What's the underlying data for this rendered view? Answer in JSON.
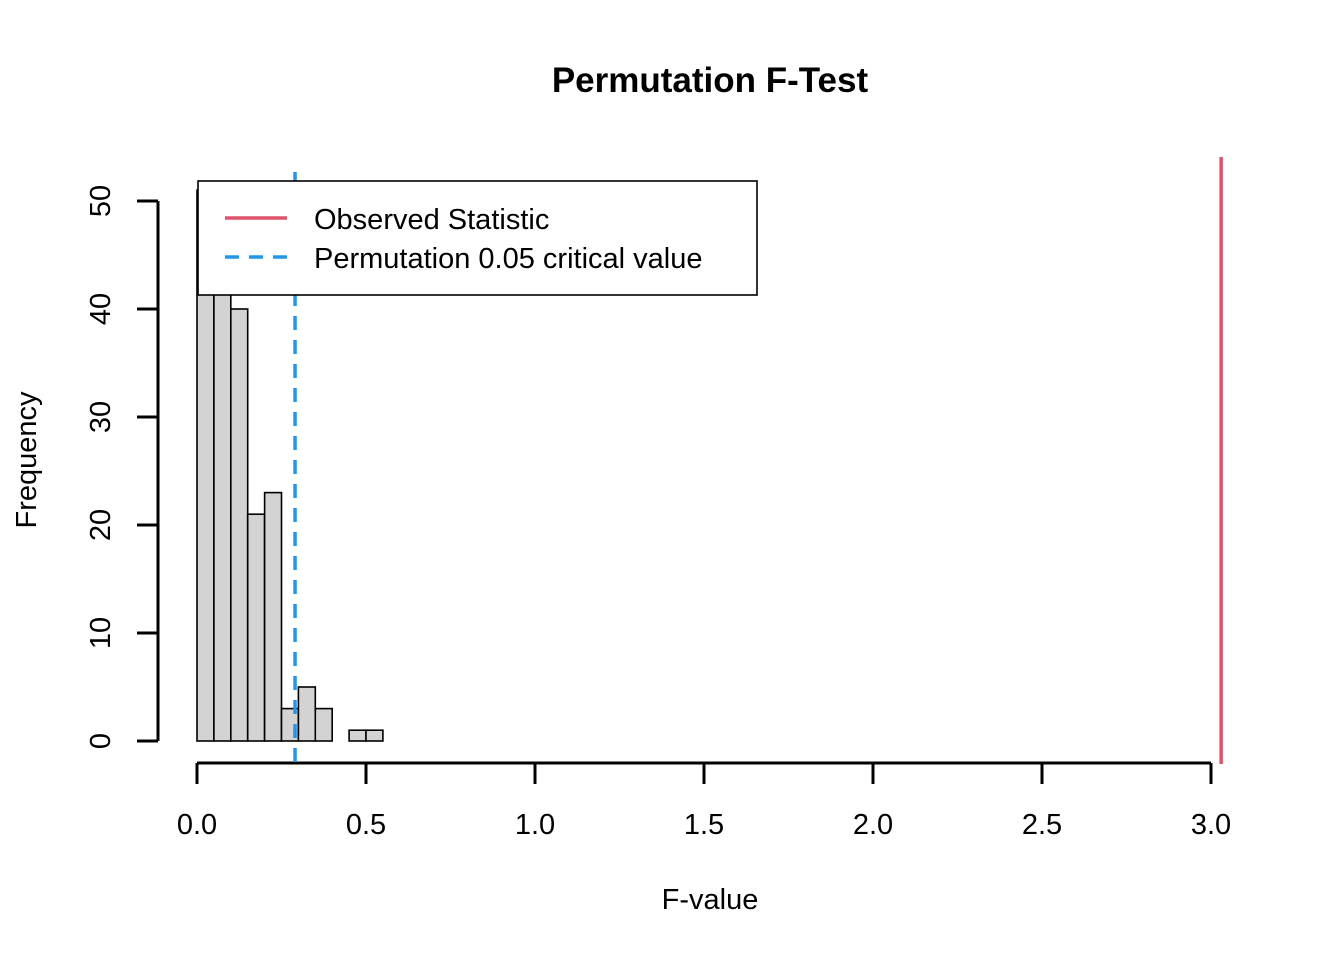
{
  "chart_data": {
    "type": "bar",
    "title": "Permutation F-Test",
    "xlabel": "F-value",
    "ylabel": "Frequency",
    "xlim": [
      0,
      3
    ],
    "ylim": [
      0,
      50
    ],
    "x_ticks": [
      "0.0",
      "0.5",
      "1.0",
      "1.5",
      "2.0",
      "2.5",
      "3.0"
    ],
    "y_ticks": [
      "0",
      "10",
      "20",
      "30",
      "40",
      "50"
    ],
    "bin_width": 0.05,
    "bins": [
      {
        "from": 0.0,
        "to": 0.05,
        "count": 51
      },
      {
        "from": 0.05,
        "to": 0.1,
        "count": 44
      },
      {
        "from": 0.1,
        "to": 0.15,
        "count": 40
      },
      {
        "from": 0.15,
        "to": 0.2,
        "count": 21
      },
      {
        "from": 0.2,
        "to": 0.25,
        "count": 23
      },
      {
        "from": 0.25,
        "to": 0.3,
        "count": 3
      },
      {
        "from": 0.3,
        "to": 0.35,
        "count": 5
      },
      {
        "from": 0.35,
        "to": 0.4,
        "count": 3
      },
      {
        "from": 0.4,
        "to": 0.45,
        "count": 0
      },
      {
        "from": 0.45,
        "to": 0.5,
        "count": 1
      },
      {
        "from": 0.5,
        "to": 0.55,
        "count": 1
      }
    ],
    "reference_lines": [
      {
        "name": "Observed Statistic",
        "x": 3.03,
        "color": "#df536b",
        "style": "solid"
      },
      {
        "name": "Permutation 0.05 critical value",
        "x": 0.29,
        "color": "#2297e6",
        "style": "dashed"
      }
    ],
    "legend": {
      "position": "top-left",
      "entries": [
        "Observed Statistic",
        "Permutation 0.05 critical value"
      ]
    },
    "bar_fill": "#d3d3d3"
  }
}
